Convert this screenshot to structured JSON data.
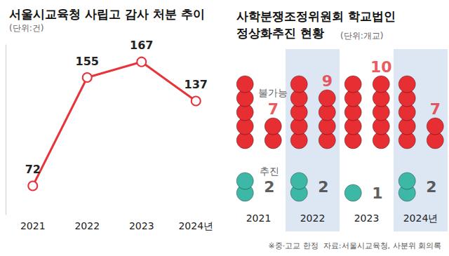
{
  "chart_data": [
    {
      "type": "line",
      "title": "서울시교육청 사립고 감사 처분 추이",
      "subtitle": "(단위:건)",
      "categories": [
        "2021",
        "2022",
        "2023",
        "2024년"
      ],
      "values": [
        72,
        155,
        167,
        137
      ],
      "color": "#e8333a",
      "ylim": [
        50,
        180
      ],
      "yticks": [],
      "grid": false,
      "data_labels": true,
      "tick_labels": "x",
      "marker": "circle"
    },
    {
      "type": "pictorial",
      "title": "사학분쟁조정위원회 학교법인\n정상화추진 현황",
      "subtitle": "(단위:개교)",
      "categories": [
        "2021",
        "2022",
        "2023",
        "2024년"
      ],
      "series": [
        {
          "name": "불가능",
          "color": "#e62e33",
          "values": [
            7,
            9,
            10,
            7
          ]
        },
        {
          "name": "추진",
          "color": "#3db8a6",
          "values": [
            2,
            2,
            1,
            2
          ]
        }
      ],
      "data_labels": true,
      "tick_labels": "x",
      "annotations": [
        "※중·고교 한정  자료:서울시교육청, 사분위 회의록"
      ]
    }
  ]
}
